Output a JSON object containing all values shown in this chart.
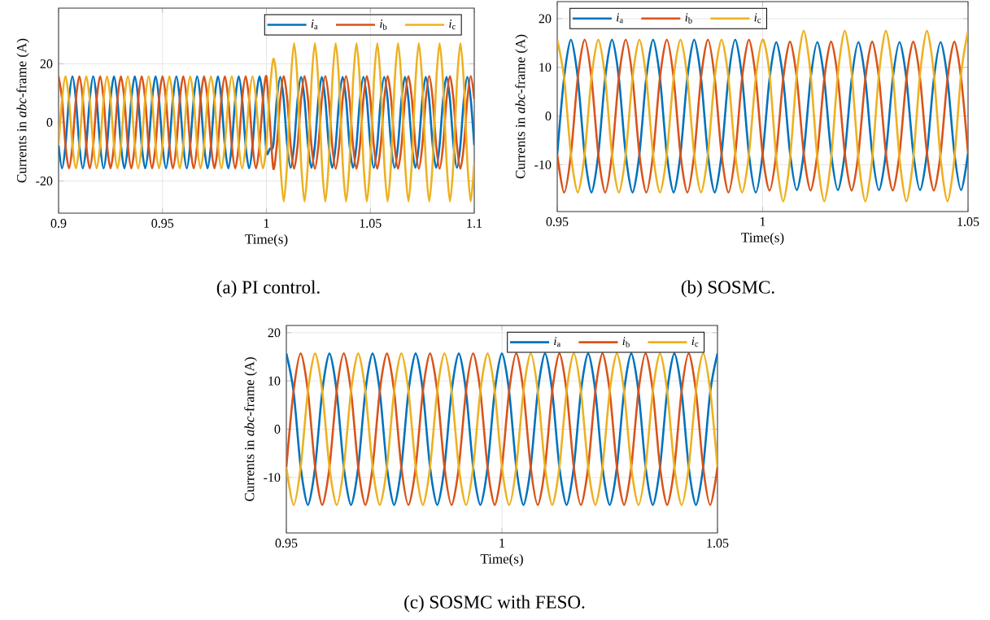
{
  "chart_data": [
    {
      "type": "line",
      "title": "(a) PI control.",
      "xlabel": "Time(s)",
      "ylabel": "Currents in *abc*-frame (A)",
      "xlim": [
        0.9,
        1.1
      ],
      "xticks": [
        0.9,
        0.95,
        1,
        1.05,
        1.1
      ],
      "ylim": [
        -31,
        39
      ],
      "yticks": [
        -20,
        0,
        20
      ],
      "grid": true,
      "legend": "top right",
      "line_style": "solid",
      "x": [
        0.9,
        0.90167,
        0.90333,
        0.905,
        0.90667,
        0.90833,
        0.91,
        0.91167,
        0.91333,
        0.915,
        0.91667,
        0.91833,
        0.92,
        0.92167,
        0.92333,
        0.925,
        0.92667,
        0.92833,
        0.93,
        0.93167,
        0.93333,
        0.935,
        0.93667,
        0.93833,
        0.94,
        0.94167,
        0.94333,
        0.945,
        0.94667,
        0.94833,
        0.95,
        0.95167,
        0.95333,
        0.955,
        0.95667,
        0.95833,
        0.96,
        0.96167,
        0.96333,
        0.965,
        0.96667,
        0.96833,
        0.97,
        0.97167,
        0.97333,
        0.975,
        0.97667,
        0.97833,
        0.98,
        0.98167,
        0.98333,
        0.985,
        0.98667,
        0.98833,
        0.99,
        0.99167,
        0.99333,
        0.995,
        0.99667,
        0.99833,
        1.0,
        1.00167,
        1.00333,
        1.005,
        1.00667,
        1.00833,
        1.01,
        1.01167,
        1.01333,
        1.015,
        1.01667,
        1.01833,
        1.02,
        1.02167,
        1.02333,
        1.025,
        1.02667,
        1.02833,
        1.03,
        1.03167,
        1.03333,
        1.035,
        1.03667,
        1.03833,
        1.04,
        1.04167,
        1.04333,
        1.045,
        1.04667,
        1.04833,
        1.05,
        1.05167,
        1.05333,
        1.055,
        1.05667,
        1.05833,
        1.06,
        1.06167,
        1.06333,
        1.065,
        1.06667,
        1.06833,
        1.07,
        1.07167,
        1.07333,
        1.075,
        1.07667,
        1.07833,
        1.08,
        1.08167,
        1.08333,
        1.085,
        1.08667,
        1.08833,
        1.09,
        1.09167,
        1.09333,
        1.095,
        1.09667,
        1.09833,
        1.1
      ],
      "series": [
        {
          "name": "*i*$_{a}$",
          "color": "#0072bd",
          "values": [
            -7.85,
            -15.7,
            -7.85,
            7.85,
            15.7,
            7.85,
            -7.85,
            -15.7,
            -7.85,
            7.85,
            15.7,
            7.85,
            -7.85,
            -15.7,
            -7.85,
            7.85,
            15.7,
            7.85,
            -7.85,
            -15.7,
            -7.85,
            7.85,
            15.7,
            7.85,
            -7.85,
            -15.7,
            -7.85,
            7.85,
            15.7,
            7.85,
            -7.85,
            -15.7,
            -7.85,
            7.85,
            15.7,
            7.85,
            -7.85,
            -15.7,
            -7.85,
            7.85,
            15.7,
            7.85,
            -7.85,
            -15.7,
            -7.85,
            7.85,
            15.7,
            7.85,
            -7.85,
            -15.7,
            -7.85,
            7.85,
            15.7,
            7.85,
            -7.85,
            -15.7,
            -7.85,
            7.85,
            15.7,
            7.85,
            -10,
            -9,
            -7.75,
            7.75,
            15.5,
            7.75,
            -7.75,
            -15.5,
            -7.75,
            7.75,
            15.5,
            7.75,
            -7.75,
            -15.5,
            -7.75,
            7.75,
            15.5,
            7.75,
            -7.75,
            -15.5,
            -7.75,
            7.75,
            15.5,
            7.75,
            -7.75,
            -15.5,
            -7.75,
            7.75,
            15.5,
            7.75,
            -7.75,
            -15.5,
            -7.75,
            7.75,
            15.5,
            7.75,
            -7.75,
            -15.5,
            -7.75,
            7.75,
            15.5,
            7.75,
            -7.75,
            -15.5,
            -7.75,
            7.75,
            15.5,
            7.75,
            -7.75,
            -15.5,
            -7.75,
            7.75,
            15.5,
            7.75,
            -7.75,
            -15.5,
            -7.75,
            7.75,
            15.5,
            7.75,
            -7.75
          ]
        },
        {
          "name": "*i*$_{b}$",
          "color": "#d95319",
          "values": [
            15.7,
            7.85,
            -7.85,
            -15.7,
            -7.85,
            7.85,
            15.7,
            7.85,
            -7.85,
            -15.7,
            -7.85,
            7.85,
            15.7,
            7.85,
            -7.85,
            -15.7,
            -7.85,
            7.85,
            15.7,
            7.85,
            -7.85,
            -15.7,
            -7.85,
            7.85,
            15.7,
            7.85,
            -7.85,
            -15.7,
            -7.85,
            7.85,
            15.7,
            7.85,
            -7.85,
            -15.7,
            -7.85,
            7.85,
            15.7,
            7.85,
            -7.85,
            -15.7,
            -7.85,
            7.85,
            15.7,
            7.85,
            -7.85,
            -15.7,
            -7.85,
            7.85,
            15.7,
            7.85,
            -7.85,
            -15.7,
            -7.85,
            7.85,
            15.7,
            7.85,
            -7.85,
            -15.7,
            -7.85,
            7.85,
            15.7,
            0,
            -15.8,
            -7.9,
            7.9,
            15.8,
            7.9,
            -7.9,
            -15.8,
            -7.9,
            7.9,
            15.8,
            7.9,
            -7.9,
            -15.8,
            -7.9,
            7.9,
            15.8,
            7.9,
            -7.9,
            -15.8,
            -7.9,
            7.9,
            15.8,
            7.9,
            -7.9,
            -15.8,
            -7.9,
            7.9,
            15.8,
            7.9,
            -7.9,
            -15.8,
            -7.9,
            7.9,
            15.8,
            7.9,
            -7.9,
            -15.8,
            -7.9,
            7.9,
            15.8,
            7.9,
            -7.9,
            -15.8,
            -7.9,
            7.9,
            15.8,
            7.9,
            -7.9,
            -15.8,
            -7.9,
            7.9,
            15.8,
            7.9,
            -7.9,
            -15.8,
            -7.9,
            7.9,
            15.8,
            7.9
          ]
        },
        {
          "name": "*i*$_{c}$",
          "color": "#edb120",
          "values": [
            -7.85,
            7.85,
            15.7,
            7.85,
            -7.85,
            -15.7,
            -7.85,
            7.85,
            15.7,
            7.85,
            -7.85,
            -15.7,
            -7.85,
            7.85,
            15.7,
            7.85,
            -7.85,
            -15.7,
            -7.85,
            7.85,
            15.7,
            7.85,
            -7.85,
            -15.7,
            -7.85,
            7.85,
            15.7,
            7.85,
            -7.85,
            -15.7,
            -7.85,
            7.85,
            15.7,
            7.85,
            -7.85,
            -15.7,
            -7.85,
            7.85,
            15.7,
            7.85,
            -7.85,
            -15.7,
            -7.85,
            7.85,
            15.7,
            7.85,
            -7.85,
            -15.7,
            -7.85,
            7.85,
            15.7,
            7.85,
            -7.85,
            -15.7,
            -7.85,
            7.85,
            15.7,
            7.85,
            -7.85,
            -15.7,
            -7.85,
            11,
            21.7,
            13.5,
            -13.5,
            -27,
            -13.5,
            13.5,
            27,
            13.5,
            -13.5,
            -27,
            -13.5,
            13.5,
            27,
            13.5,
            -13.5,
            -27,
            -13.5,
            13.5,
            27,
            13.5,
            -13.5,
            -27,
            -13.5,
            13.5,
            27,
            13.5,
            -13.5,
            -27,
            -13.5,
            13.5,
            27,
            13.5,
            -13.5,
            -27,
            -13.5,
            13.5,
            27,
            13.5,
            -13.5,
            -27,
            -13.5,
            13.5,
            27,
            13.5,
            -13.5,
            -27,
            -13.5,
            13.5,
            27,
            13.5,
            -13.5,
            -27,
            -13.5,
            13.5,
            27,
            13.5,
            -13.5,
            -27,
            -13.5
          ]
        }
      ]
    },
    {
      "type": "line",
      "title": "(b) SOSMC.",
      "xlabel": "Time(s)",
      "ylabel": "Currents in *abc*-frame (A)",
      "xlim": [
        0.95,
        1.05
      ],
      "xticks": [
        0.95,
        1,
        1.05
      ],
      "ylim": [
        -19.6,
        23.5
      ],
      "yticks": [
        -10,
        0,
        10,
        20
      ],
      "grid": true,
      "legend": "top left",
      "line_style": "solid",
      "x": [
        0.95,
        0.95167,
        0.95333,
        0.955,
        0.95667,
        0.95833,
        0.96,
        0.96167,
        0.96333,
        0.965,
        0.96667,
        0.96833,
        0.97,
        0.97167,
        0.97333,
        0.975,
        0.97667,
        0.97833,
        0.98,
        0.98167,
        0.98333,
        0.985,
        0.98667,
        0.98833,
        0.99,
        0.99167,
        0.99333,
        0.995,
        0.99667,
        0.99833,
        1.0,
        1.00167,
        1.00333,
        1.005,
        1.00667,
        1.00833,
        1.01,
        1.01167,
        1.01333,
        1.015,
        1.01667,
        1.01833,
        1.02,
        1.02167,
        1.02333,
        1.025,
        1.02667,
        1.02833,
        1.03,
        1.03167,
        1.03333,
        1.035,
        1.03667,
        1.03833,
        1.04,
        1.04167,
        1.04333,
        1.045,
        1.04667,
        1.04833,
        1.05
      ],
      "series": [
        {
          "name": "*i*$_{a}$",
          "color": "#0072bd",
          "values": [
            -7.85,
            7.85,
            15.7,
            7.85,
            -7.85,
            -15.7,
            -7.85,
            7.85,
            15.7,
            7.85,
            -7.85,
            -15.7,
            -7.85,
            7.85,
            15.7,
            7.85,
            -7.85,
            -15.7,
            -7.85,
            7.85,
            15.7,
            7.85,
            -7.85,
            -15.7,
            -7.85,
            7.85,
            15.7,
            7.85,
            -7.85,
            -15.7,
            -7.85,
            7.6,
            15.2,
            7.6,
            -7.6,
            -15.2,
            -7.6,
            7.6,
            15.2,
            7.6,
            -7.6,
            -15.2,
            -7.6,
            7.6,
            15.2,
            7.6,
            -7.6,
            -15.2,
            -7.6,
            7.6,
            15.2,
            7.6,
            -7.6,
            -15.2,
            -7.6,
            7.6,
            15.2,
            7.6,
            -7.6,
            -15.2,
            -7.6
          ]
        },
        {
          "name": "*i*$_{b}$",
          "color": "#d95319",
          "values": [
            -7.85,
            -15.7,
            -7.85,
            7.85,
            15.7,
            7.85,
            -7.85,
            -15.7,
            -7.85,
            7.85,
            15.7,
            7.85,
            -7.85,
            -15.7,
            -7.85,
            7.85,
            15.7,
            7.85,
            -7.85,
            -15.7,
            -7.85,
            7.85,
            15.7,
            7.85,
            -7.85,
            -15.7,
            -7.85,
            7.85,
            15.7,
            7.85,
            -7.85,
            -15.3,
            -7.65,
            7.65,
            15.3,
            7.65,
            -7.65,
            -15.3,
            -7.65,
            7.65,
            15.3,
            7.65,
            -7.65,
            -15.3,
            -7.65,
            7.65,
            15.3,
            7.65,
            -7.65,
            -15.3,
            -7.65,
            7.65,
            15.3,
            7.65,
            -7.65,
            -15.3,
            -7.65,
            7.65,
            15.3,
            7.65,
            -7.65
          ]
        },
        {
          "name": "*i*$_{c}$",
          "color": "#edb120",
          "values": [
            15.7,
            7.85,
            -7.85,
            -15.7,
            -7.85,
            7.85,
            15.7,
            7.85,
            -7.85,
            -15.7,
            -7.85,
            7.85,
            15.7,
            7.85,
            -7.85,
            -15.7,
            -7.85,
            7.85,
            15.7,
            7.85,
            -7.85,
            -15.7,
            -7.85,
            7.85,
            15.7,
            7.85,
            -7.85,
            -15.7,
            -7.85,
            7.85,
            15.7,
            8.75,
            -8.75,
            -17.5,
            -8.75,
            8.75,
            17.5,
            8.75,
            -8.75,
            -17.5,
            -8.75,
            8.75,
            17.5,
            8.75,
            -8.75,
            -17.5,
            -8.75,
            8.75,
            17.5,
            8.75,
            -8.75,
            -17.5,
            -8.75,
            8.75,
            17.5,
            8.75,
            -8.75,
            -17.5,
            -8.75,
            8.75,
            17.5
          ]
        }
      ]
    },
    {
      "type": "line",
      "title": "(c) SOSMC with FESO.",
      "xlabel": "Time(s)",
      "ylabel": "Currents in *abc*-frame (A)",
      "xlim": [
        0.95,
        1.05
      ],
      "xticks": [
        0.95,
        1,
        1.05
      ],
      "ylim": [
        -21.5,
        21.5
      ],
      "yticks": [
        -10,
        0,
        10,
        20
      ],
      "grid": true,
      "legend": "top right",
      "line_style": "solid",
      "x": [
        0.95,
        0.95167,
        0.95333,
        0.955,
        0.95667,
        0.95833,
        0.96,
        0.96167,
        0.96333,
        0.965,
        0.96667,
        0.96833,
        0.97,
        0.97167,
        0.97333,
        0.975,
        0.97667,
        0.97833,
        0.98,
        0.98167,
        0.98333,
        0.985,
        0.98667,
        0.98833,
        0.99,
        0.99167,
        0.99333,
        0.995,
        0.99667,
        0.99833,
        1.0,
        1.00167,
        1.00333,
        1.005,
        1.00667,
        1.00833,
        1.01,
        1.01167,
        1.01333,
        1.015,
        1.01667,
        1.01833,
        1.02,
        1.02167,
        1.02333,
        1.025,
        1.02667,
        1.02833,
        1.03,
        1.03167,
        1.03333,
        1.035,
        1.03667,
        1.03833,
        1.04,
        1.04167,
        1.04333,
        1.045,
        1.04667,
        1.04833,
        1.05
      ],
      "series": [
        {
          "name": "*i*$_{a}$",
          "color": "#0072bd",
          "values": [
            15.7,
            7.85,
            -7.85,
            -15.7,
            -7.85,
            7.85,
            15.7,
            7.85,
            -7.85,
            -15.7,
            -7.85,
            7.85,
            15.7,
            7.85,
            -7.85,
            -15.7,
            -7.85,
            7.85,
            15.7,
            7.85,
            -7.85,
            -15.7,
            -7.85,
            7.85,
            15.7,
            7.85,
            -7.85,
            -15.7,
            -7.85,
            7.85,
            15.7,
            7.85,
            -7.85,
            -15.7,
            -7.85,
            7.85,
            15.7,
            7.85,
            -7.85,
            -15.7,
            -7.85,
            7.85,
            15.7,
            7.85,
            -7.85,
            -15.7,
            -7.85,
            7.85,
            15.7,
            7.85,
            -7.85,
            -15.7,
            -7.85,
            7.85,
            15.7,
            7.85,
            -7.85,
            -15.7,
            -7.85,
            7.85,
            15.7
          ]
        },
        {
          "name": "*i*$_{b}$",
          "color": "#d95319",
          "values": [
            -7.85,
            7.85,
            15.7,
            7.85,
            -7.85,
            -15.7,
            -7.85,
            7.85,
            15.7,
            7.85,
            -7.85,
            -15.7,
            -7.85,
            7.85,
            15.7,
            7.85,
            -7.85,
            -15.7,
            -7.85,
            7.85,
            15.7,
            7.85,
            -7.85,
            -15.7,
            -7.85,
            7.85,
            15.7,
            7.85,
            -7.85,
            -15.7,
            -7.85,
            7.85,
            15.7,
            7.85,
            -7.85,
            -15.7,
            -7.85,
            7.85,
            15.7,
            7.85,
            -7.85,
            -15.7,
            -7.85,
            7.85,
            15.7,
            7.85,
            -7.85,
            -15.7,
            -7.85,
            7.85,
            15.7,
            7.85,
            -7.85,
            -15.7,
            -7.85,
            7.85,
            15.7,
            7.85,
            -7.85,
            -15.7,
            -7.85
          ]
        },
        {
          "name": "*i*$_{c}$",
          "color": "#edb120",
          "values": [
            -7.85,
            -15.7,
            -7.85,
            7.85,
            15.7,
            7.85,
            -7.85,
            -15.7,
            -7.85,
            7.85,
            15.7,
            7.85,
            -7.85,
            -15.7,
            -7.85,
            7.85,
            15.7,
            7.85,
            -7.85,
            -15.7,
            -7.85,
            7.85,
            15.7,
            7.85,
            -7.85,
            -15.7,
            -7.85,
            7.85,
            15.7,
            7.85,
            -7.85,
            -15.7,
            -7.85,
            7.85,
            15.7,
            7.85,
            -7.85,
            -15.7,
            -7.85,
            7.85,
            15.7,
            7.85,
            -7.85,
            -15.7,
            -7.85,
            7.85,
            15.7,
            7.85,
            -7.85,
            -15.7,
            -7.85,
            7.85,
            15.7,
            7.85,
            -7.85,
            -15.7,
            -7.85,
            7.85,
            15.7,
            7.85,
            -7.85
          ]
        }
      ]
    }
  ]
}
